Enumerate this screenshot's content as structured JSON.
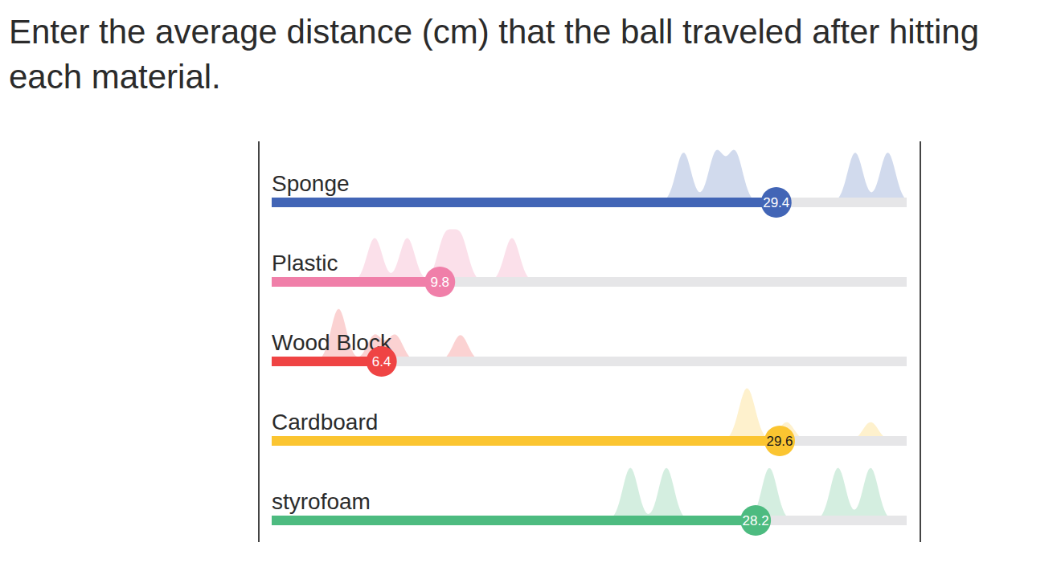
{
  "chart_data": {
    "type": "bar",
    "title": "Enter the average distance (cm) that the ball traveled after hitting each material.",
    "orientation": "horizontal",
    "categories": [
      "Sponge",
      "Plastic",
      "Wood Block",
      "Cardboard",
      "styrofoam"
    ],
    "values": [
      29.4,
      9.8,
      6.4,
      29.6,
      28.2
    ],
    "colors": [
      "#4265b6",
      "#f07fa9",
      "#ef4444",
      "#fbc531",
      "#4dbb80"
    ],
    "trials": [
      [
        24.0,
        25.9,
        27.0,
        34.0,
        35.9
      ],
      [
        6.0,
        7.9,
        10.1,
        11.0,
        14.0
      ],
      [
        3.9,
        3.9,
        6.0,
        7.2,
        11.0
      ],
      [
        27.5,
        27.7,
        27.9,
        30.0,
        34.9
      ],
      [
        20.9,
        23.0,
        29.0,
        33.0,
        34.9
      ]
    ],
    "xlim": [
      0,
      37
    ],
    "tick_labels": false,
    "data_labels": true,
    "grid": false
  }
}
